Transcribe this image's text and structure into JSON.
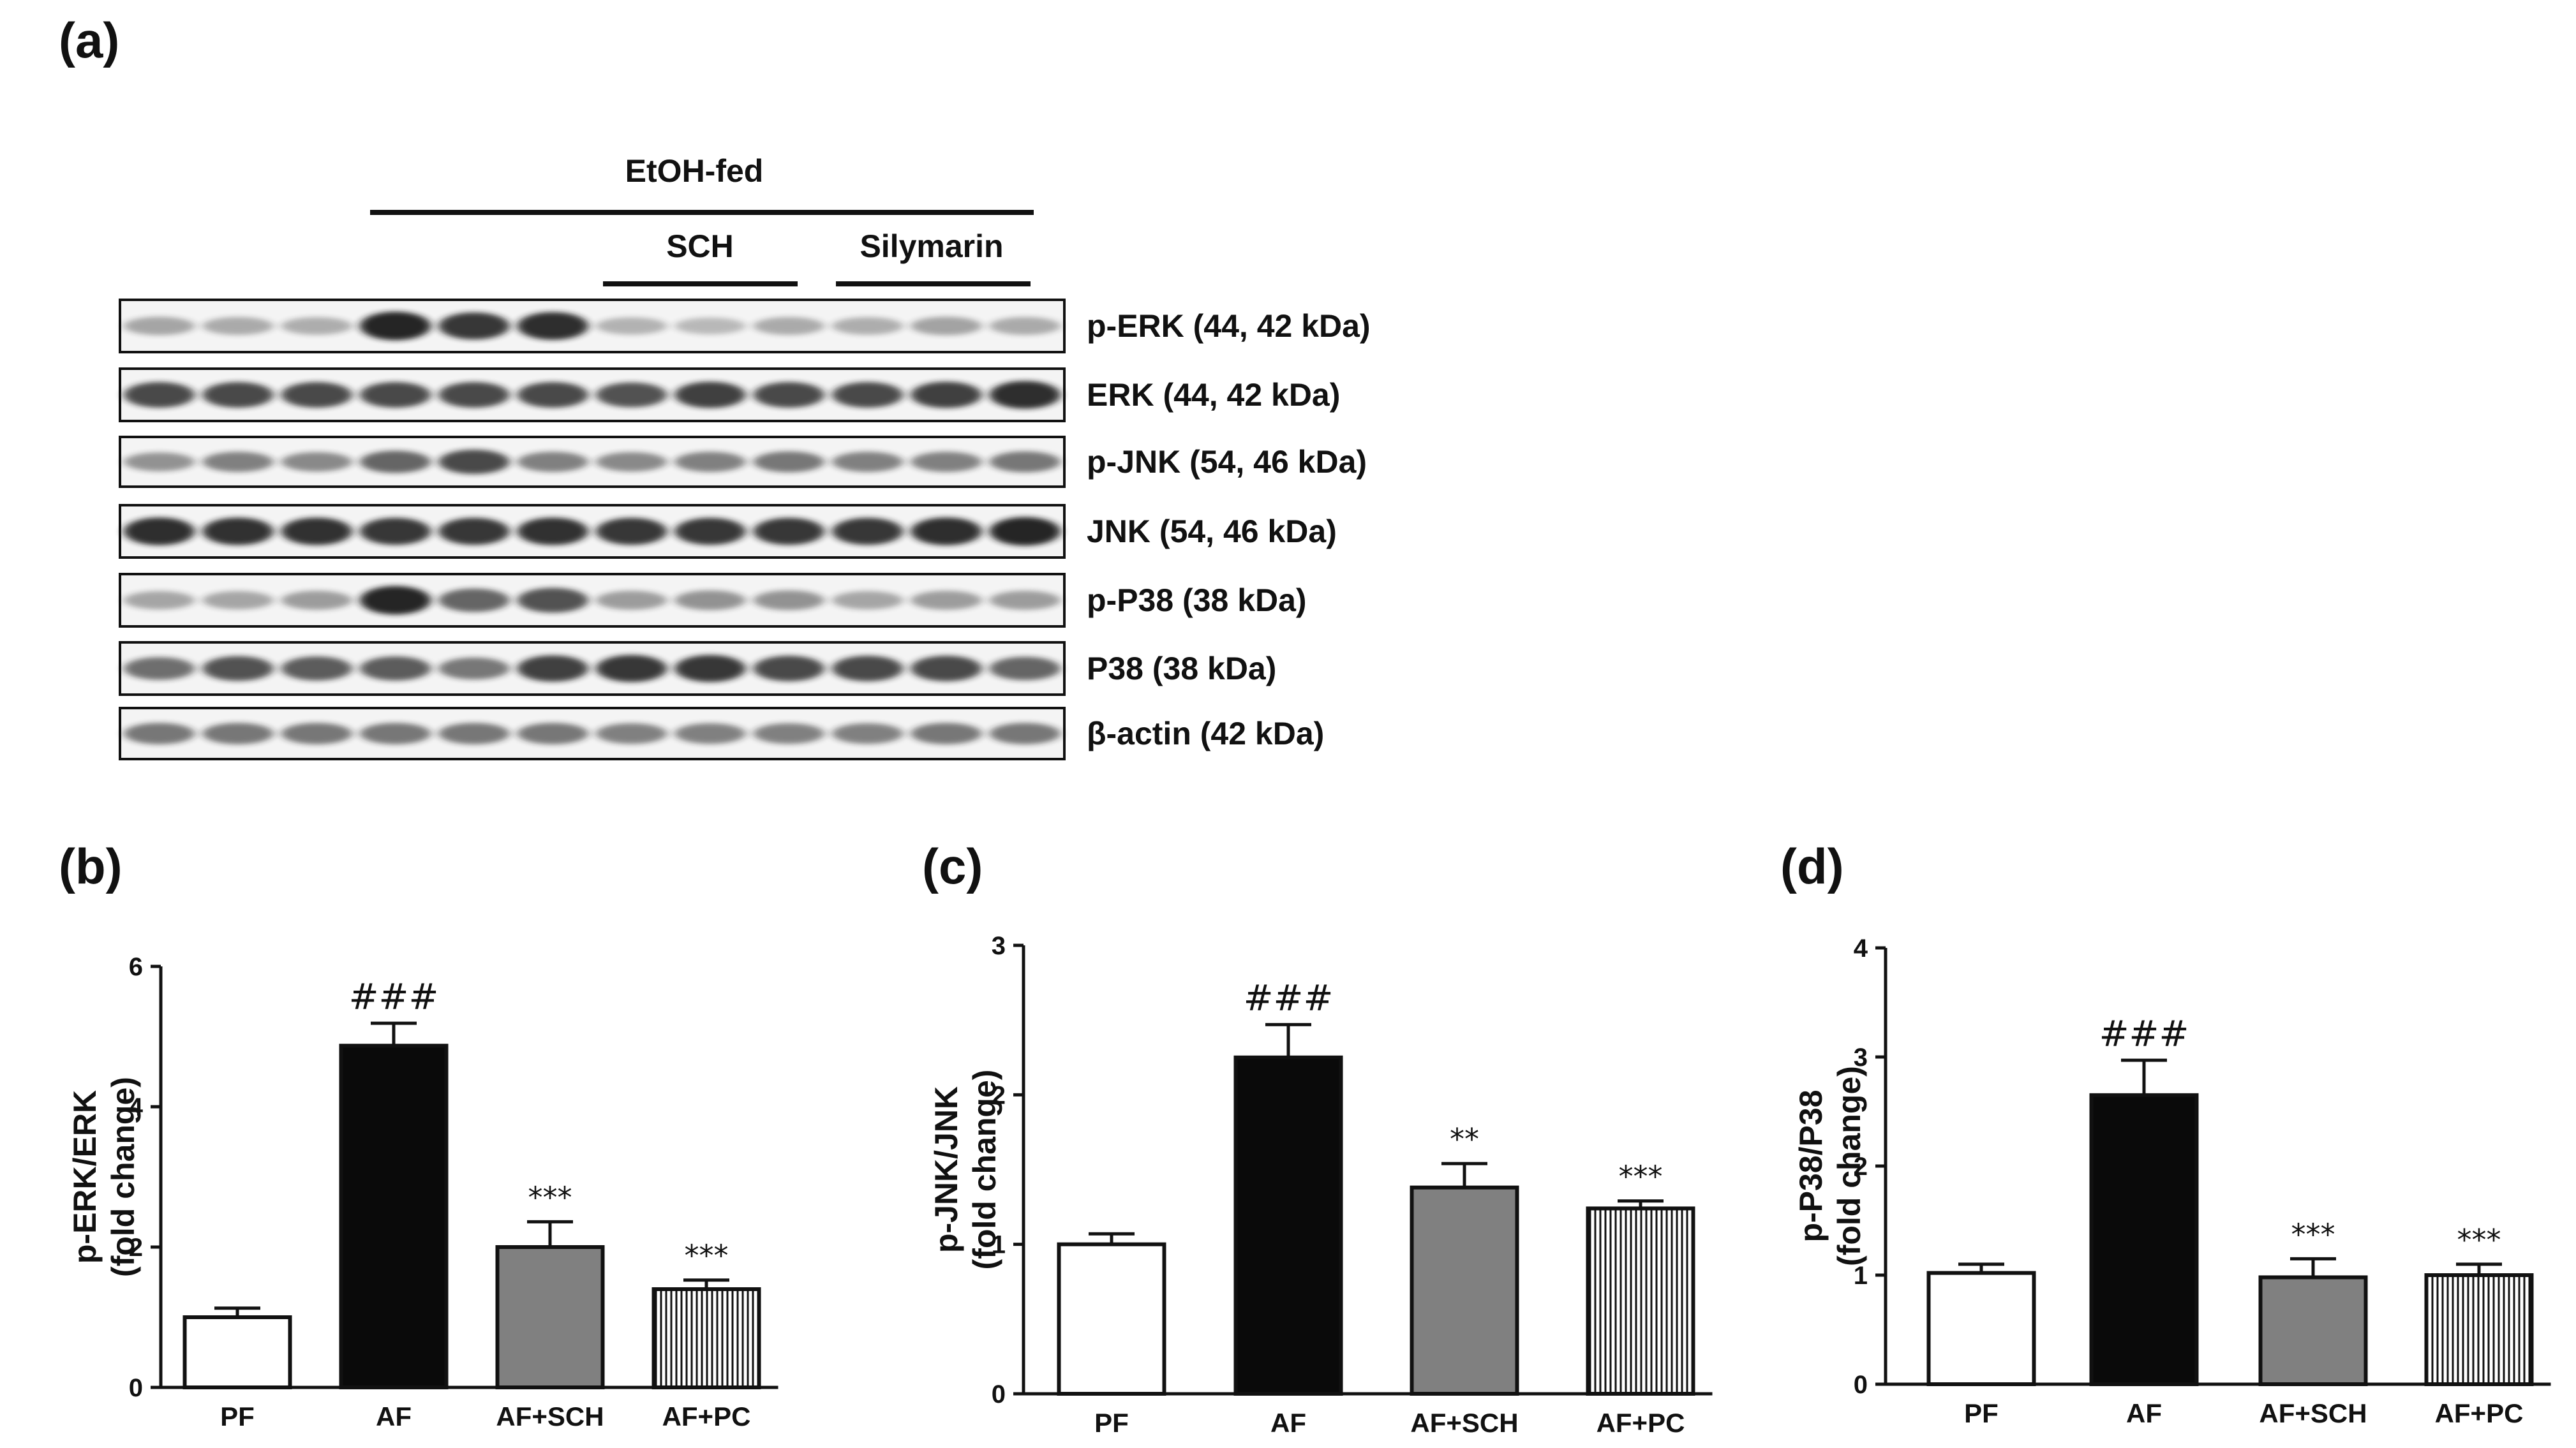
{
  "blot": {
    "panel_label": "(a)",
    "group_label": "EtOH-fed",
    "subgroups": [
      "SCH",
      "Silymarin"
    ],
    "bands": [
      {
        "label": "p-ERK (44, 42  kDa)",
        "intensity": [
          0.25,
          0.22,
          0.2,
          0.95,
          0.85,
          0.9,
          0.18,
          0.14,
          0.22,
          0.2,
          0.26,
          0.22
        ]
      },
      {
        "label": "ERK (44, 42 kDa)",
        "intensity": [
          0.75,
          0.75,
          0.75,
          0.75,
          0.75,
          0.75,
          0.7,
          0.8,
          0.75,
          0.75,
          0.8,
          0.9
        ]
      },
      {
        "label": "p-JNK (54, 46 kDa)",
        "intensity": [
          0.35,
          0.45,
          0.4,
          0.6,
          0.75,
          0.45,
          0.4,
          0.45,
          0.5,
          0.45,
          0.45,
          0.5
        ]
      },
      {
        "label": "JNK (54, 46 kDa)",
        "intensity": [
          0.9,
          0.88,
          0.88,
          0.85,
          0.85,
          0.88,
          0.85,
          0.85,
          0.85,
          0.85,
          0.9,
          0.95
        ]
      },
      {
        "label": "p-P38 (38 kDa)",
        "intensity": [
          0.25,
          0.25,
          0.3,
          0.95,
          0.6,
          0.7,
          0.3,
          0.35,
          0.35,
          0.25,
          0.3,
          0.3
        ]
      },
      {
        "label": "P38 (38 kDa)",
        "intensity": [
          0.55,
          0.7,
          0.65,
          0.65,
          0.5,
          0.8,
          0.85,
          0.85,
          0.75,
          0.75,
          0.75,
          0.6
        ]
      },
      {
        "label": "β-actin (42 kDa)",
        "intensity": [
          0.5,
          0.5,
          0.5,
          0.5,
          0.5,
          0.5,
          0.45,
          0.45,
          0.45,
          0.45,
          0.5,
          0.5
        ]
      }
    ]
  },
  "chart_data": [
    {
      "type": "bar",
      "panel_label": "(b)",
      "categories": [
        "PF",
        "AF",
        "AF+SCH",
        "AF+PC"
      ],
      "values": [
        1.0,
        4.87,
        2.0,
        1.4
      ],
      "errors": [
        0.13,
        0.32,
        0.36,
        0.13
      ],
      "significance": [
        "",
        "###",
        "***",
        "***"
      ],
      "ylabel_lines": [
        "p-ERK/ERK",
        "(fold change)"
      ],
      "ylim": [
        0,
        6
      ],
      "yticks": [
        "0",
        "2",
        "4",
        "6"
      ],
      "fills": [
        "white",
        "black",
        "gray",
        "stripes"
      ]
    },
    {
      "type": "bar",
      "panel_label": "(c)",
      "categories": [
        "PF",
        "AF",
        "AF+SCH",
        "AF+PC"
      ],
      "values": [
        1.0,
        2.25,
        1.38,
        1.24
      ],
      "errors": [
        0.07,
        0.22,
        0.16,
        0.05
      ],
      "significance": [
        "",
        "###",
        "**",
        "***"
      ],
      "ylabel_lines": [
        "p-JNK/JNK",
        "(fold change)"
      ],
      "ylim": [
        0,
        3
      ],
      "yticks": [
        "0",
        "1",
        "2",
        "3"
      ],
      "fills": [
        "white",
        "black",
        "gray",
        "stripes"
      ]
    },
    {
      "type": "bar",
      "panel_label": "(d)",
      "categories": [
        "PF",
        "AF",
        "AF+SCH",
        "AF+PC"
      ],
      "values": [
        1.02,
        2.65,
        0.98,
        1.0
      ],
      "errors": [
        0.08,
        0.32,
        0.17,
        0.1
      ],
      "significance": [
        "",
        "###",
        "***",
        "***"
      ],
      "ylabel_lines": [
        "p-P38/P38",
        "(fold change)"
      ],
      "ylim": [
        0,
        4
      ],
      "yticks": [
        "0",
        "1",
        "2",
        "3",
        "4"
      ],
      "fills": [
        "white",
        "black",
        "gray",
        "stripes"
      ]
    }
  ],
  "colors": {
    "ink": "#111111",
    "gray_bar": "#808080",
    "band": "#1a1a1a"
  }
}
